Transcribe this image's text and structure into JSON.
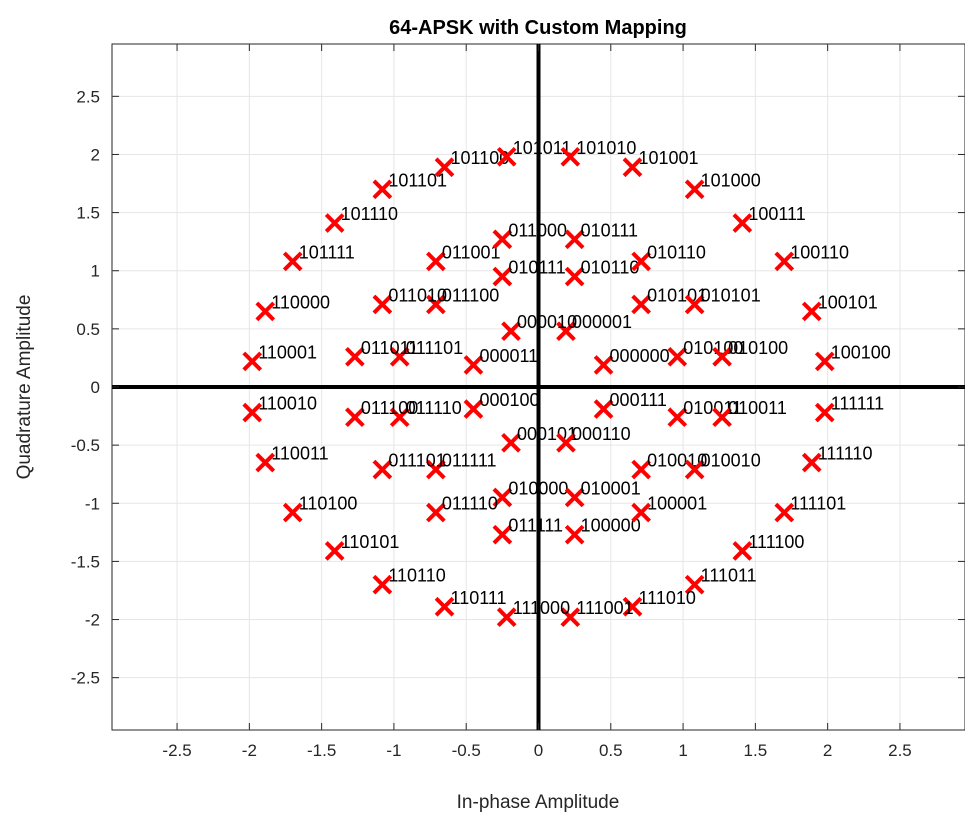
{
  "chart_data": {
    "type": "scatter",
    "title": "64-APSK with Custom Mapping",
    "xlabel": "In-phase Amplitude",
    "ylabel": "Quadrature Amplitude",
    "xlim": [
      -2.95,
      2.95
    ],
    "ylim": [
      -2.95,
      2.95
    ],
    "xticks": [
      -2.5,
      -2,
      -1.5,
      -1,
      -0.5,
      0,
      0.5,
      1,
      1.5,
      2,
      2.5
    ],
    "yticks": [
      -2.5,
      -2,
      -1.5,
      -1,
      -0.5,
      0,
      0.5,
      1,
      1.5,
      2,
      2.5
    ],
    "xtick_labels": [
      "-2.5",
      "-2",
      "-1.5",
      "-1",
      "-0.5",
      "0",
      "0.5",
      "1",
      "1.5",
      "2",
      "2.5"
    ],
    "ytick_labels": [
      "-2.5",
      "-2",
      "-1.5",
      "-1",
      "-0.5",
      "0",
      "0.5",
      "1",
      "1.5",
      "2",
      "2.5"
    ],
    "grid": true,
    "marker": "x",
    "marker_color": "#ff0000",
    "axes_lines_color": "#000000",
    "points": [
      {
        "x": 0.45,
        "y": 0.19,
        "label": "000000"
      },
      {
        "x": 0.19,
        "y": 0.48,
        "label": "000001"
      },
      {
        "x": -0.45,
        "y": 0.19,
        "label": "000011"
      },
      {
        "x": -0.19,
        "y": 0.48,
        "label": "000010"
      },
      {
        "x": -0.19,
        "y": -0.48,
        "label": "000101"
      },
      {
        "x": -0.45,
        "y": -0.19,
        "label": "000100"
      },
      {
        "x": 0.19,
        "y": -0.48,
        "label": "000110"
      },
      {
        "x": 0.45,
        "y": -0.19,
        "label": "000111"
      },
      {
        "x": -0.25,
        "y": -0.95,
        "label": "010000"
      },
      {
        "x": 0.25,
        "y": -0.95,
        "label": "010001"
      },
      {
        "x": 0.71,
        "y": -0.71,
        "label": "010010"
      },
      {
        "x": 0.96,
        "y": -0.26,
        "label": "010011"
      },
      {
        "x": 0.96,
        "y": 0.26,
        "label": "010100"
      },
      {
        "x": 0.71,
        "y": 0.71,
        "label": "010101"
      },
      {
        "x": 0.25,
        "y": 0.95,
        "label": "010110"
      },
      {
        "x": -0.25,
        "y": 0.95,
        "label": "010111"
      },
      {
        "x": -0.71,
        "y": 1.08,
        "label": "011001"
      },
      {
        "x": -0.25,
        "y": 1.27,
        "label": "011000"
      },
      {
        "x": 0.25,
        "y": 1.27,
        "label": "010111"
      },
      {
        "x": 0.71,
        "y": 1.08,
        "label": "010110"
      },
      {
        "x": -0.71,
        "y": 0.71,
        "label": "011100"
      },
      {
        "x": -1.08,
        "y": 0.71,
        "label": "011010"
      },
      {
        "x": 1.08,
        "y": 0.71,
        "label": "010101"
      },
      {
        "x": -0.96,
        "y": 0.26,
        "label": "011101"
      },
      {
        "x": -1.27,
        "y": 0.26,
        "label": "011011"
      },
      {
        "x": 1.27,
        "y": 0.26,
        "label": "010100"
      },
      {
        "x": -0.96,
        "y": -0.26,
        "label": "011110"
      },
      {
        "x": -1.27,
        "y": -0.26,
        "label": "011100"
      },
      {
        "x": 1.27,
        "y": -0.26,
        "label": "010011"
      },
      {
        "x": -0.71,
        "y": -0.71,
        "label": "011111"
      },
      {
        "x": -1.08,
        "y": -0.71,
        "label": "011101"
      },
      {
        "x": 1.08,
        "y": -0.71,
        "label": "010010"
      },
      {
        "x": -0.71,
        "y": -1.08,
        "label": "011110"
      },
      {
        "x": -0.25,
        "y": -1.27,
        "label": "011111"
      },
      {
        "x": 0.25,
        "y": -1.27,
        "label": "100000"
      },
      {
        "x": 0.71,
        "y": -1.08,
        "label": "100001"
      },
      {
        "x": 1.08,
        "y": -1.7,
        "label": "111011"
      },
      {
        "x": 0.65,
        "y": -1.89,
        "label": "111010"
      },
      {
        "x": 0.22,
        "y": -1.98,
        "label": "111001"
      },
      {
        "x": -0.22,
        "y": -1.98,
        "label": "111000"
      },
      {
        "x": -0.65,
        "y": -1.89,
        "label": "110111"
      },
      {
        "x": -1.08,
        "y": -1.7,
        "label": "110110"
      },
      {
        "x": -1.41,
        "y": -1.41,
        "label": "110101"
      },
      {
        "x": -1.7,
        "y": -1.08,
        "label": "110100"
      },
      {
        "x": -1.89,
        "y": -0.65,
        "label": "110011"
      },
      {
        "x": -1.98,
        "y": -0.22,
        "label": "110010"
      },
      {
        "x": -1.98,
        "y": 0.22,
        "label": "110001"
      },
      {
        "x": -1.89,
        "y": 0.65,
        "label": "110000"
      },
      {
        "x": -1.7,
        "y": 1.08,
        "label": "101111"
      },
      {
        "x": -1.41,
        "y": 1.41,
        "label": "101110"
      },
      {
        "x": -1.08,
        "y": 1.7,
        "label": "101101"
      },
      {
        "x": -0.65,
        "y": 1.89,
        "label": "101100"
      },
      {
        "x": -0.22,
        "y": 1.98,
        "label": "101011"
      },
      {
        "x": 0.22,
        "y": 1.98,
        "label": "101010"
      },
      {
        "x": 0.65,
        "y": 1.89,
        "label": "101001"
      },
      {
        "x": 1.08,
        "y": 1.7,
        "label": "101000"
      },
      {
        "x": 1.41,
        "y": 1.41,
        "label": "100111"
      },
      {
        "x": 1.7,
        "y": 1.08,
        "label": "100110"
      },
      {
        "x": 1.89,
        "y": 0.65,
        "label": "100101"
      },
      {
        "x": 1.98,
        "y": 0.22,
        "label": "100100"
      },
      {
        "x": 1.98,
        "y": -0.22,
        "label": "111111"
      },
      {
        "x": 1.89,
        "y": -0.65,
        "label": "111110"
      },
      {
        "x": 1.7,
        "y": -1.08,
        "label": "111101"
      },
      {
        "x": 1.41,
        "y": -1.41,
        "label": "111100"
      }
    ]
  }
}
